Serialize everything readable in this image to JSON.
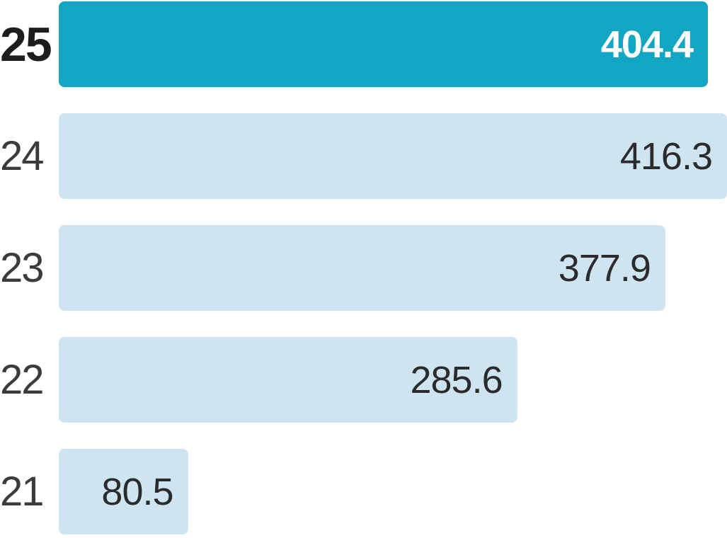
{
  "chart_data": {
    "type": "bar",
    "orientation": "horizontal",
    "title": "",
    "xlabel": "",
    "ylabel": "",
    "categories": [
      "25",
      "24",
      "23",
      "22",
      "21"
    ],
    "values": [
      404.4,
      416.3,
      377.9,
      285.6,
      80.5
    ],
    "value_labels": [
      "404.4",
      "416.3",
      "377.9",
      "285.6",
      "80.5"
    ],
    "highlighted_category": "25",
    "xlim": [
      0,
      416.3
    ],
    "grid": false,
    "legend": false,
    "colors": {
      "highlight_bar": "#11a6c3",
      "bar": "#cfe4f1",
      "highlight_value_text": "#ffffff",
      "value_text": "#2b2b2b",
      "highlight_category_text": "#1d1d1b",
      "category_text": "#3b3b3b",
      "background": "#ffffff"
    }
  }
}
